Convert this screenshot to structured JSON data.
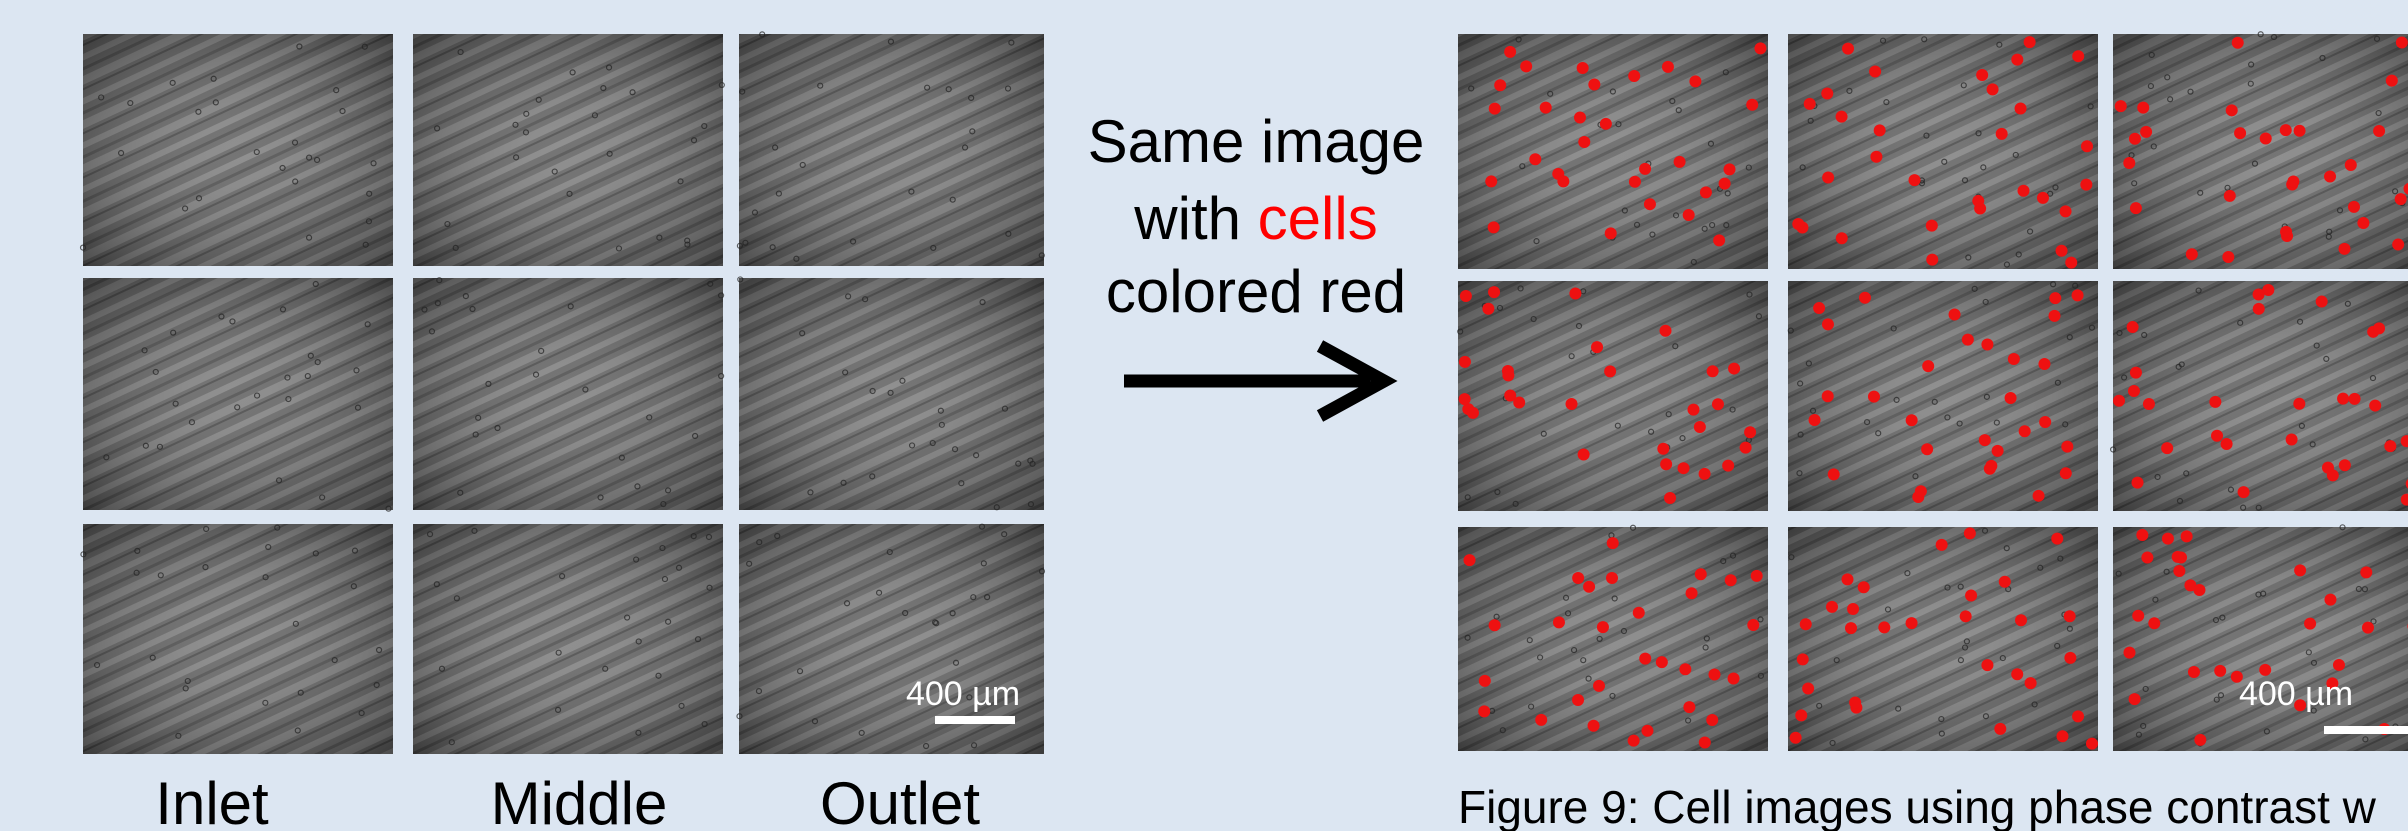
{
  "left_panel": {
    "scale_bar": "400 µm",
    "column_labels": [
      "Inlet",
      "Middle",
      "Outlet"
    ]
  },
  "annotation": {
    "line1": "Same image",
    "line2_prefix": "with",
    "line2_highlight": "cells",
    "line3": "colored red"
  },
  "right_panel": {
    "scale_bar": "400 µm",
    "caption": "Figure 9: Cell images using phase contrast w"
  }
}
